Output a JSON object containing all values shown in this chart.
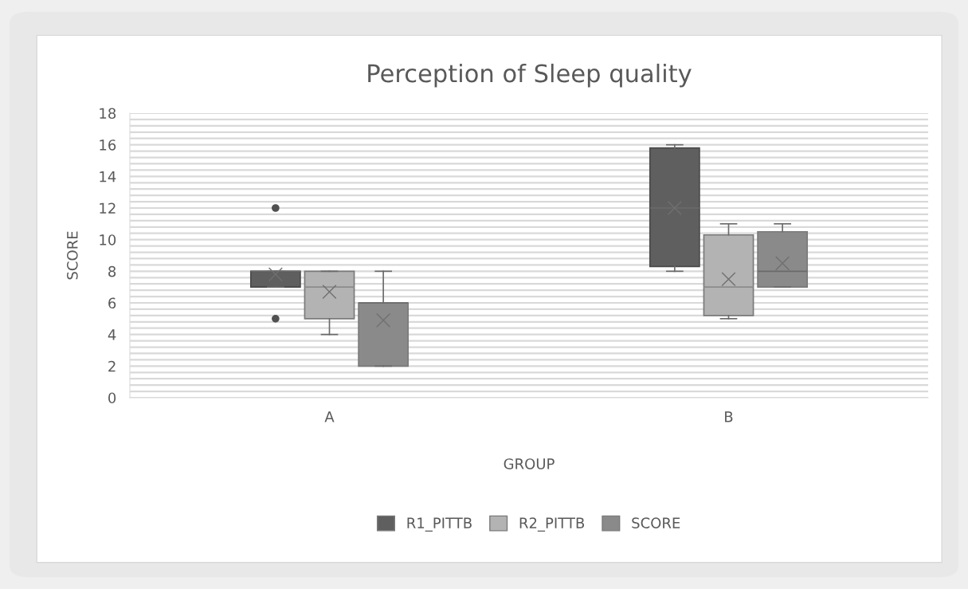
{
  "chart_data": {
    "type": "box",
    "title": "Perception of Sleep quality",
    "xlabel": "GROUP",
    "ylabel": "SCORE",
    "categories": [
      "A",
      "B"
    ],
    "ylim": [
      0,
      18
    ],
    "yticks": [
      0,
      2,
      4,
      6,
      8,
      10,
      12,
      14,
      16,
      18
    ],
    "grid": "y",
    "legend": "bottom",
    "series": [
      {
        "name": "R1_PITTB",
        "color": "#5f5f5f",
        "boxes": [
          {
            "low": 7,
            "q1": 7,
            "median": 8,
            "q3": 8,
            "high": 8,
            "mean": 7.8,
            "outliers": [
              5,
              12
            ]
          },
          {
            "low": 8,
            "q1": 8.3,
            "median": 12,
            "q3": 15.8,
            "high": 16,
            "mean": 12
          }
        ]
      },
      {
        "name": "R2_PITTB",
        "color": "#b3b3b3",
        "boxes": [
          {
            "low": 4,
            "q1": 5,
            "median": 7,
            "q3": 8,
            "high": 8,
            "mean": 6.7
          },
          {
            "low": 5,
            "q1": 5.2,
            "median": 7,
            "q3": 10.3,
            "high": 11,
            "mean": 7.5
          }
        ]
      },
      {
        "name": "SCORE",
        "color": "#8a8a8a",
        "boxes": [
          {
            "low": 2,
            "q1": 2,
            "median": 6,
            "q3": 6,
            "high": 8,
            "mean": 4.9
          },
          {
            "low": 7,
            "q1": 7,
            "median": 8,
            "q3": 10.5,
            "high": 11,
            "mean": 8.5
          }
        ]
      }
    ]
  }
}
